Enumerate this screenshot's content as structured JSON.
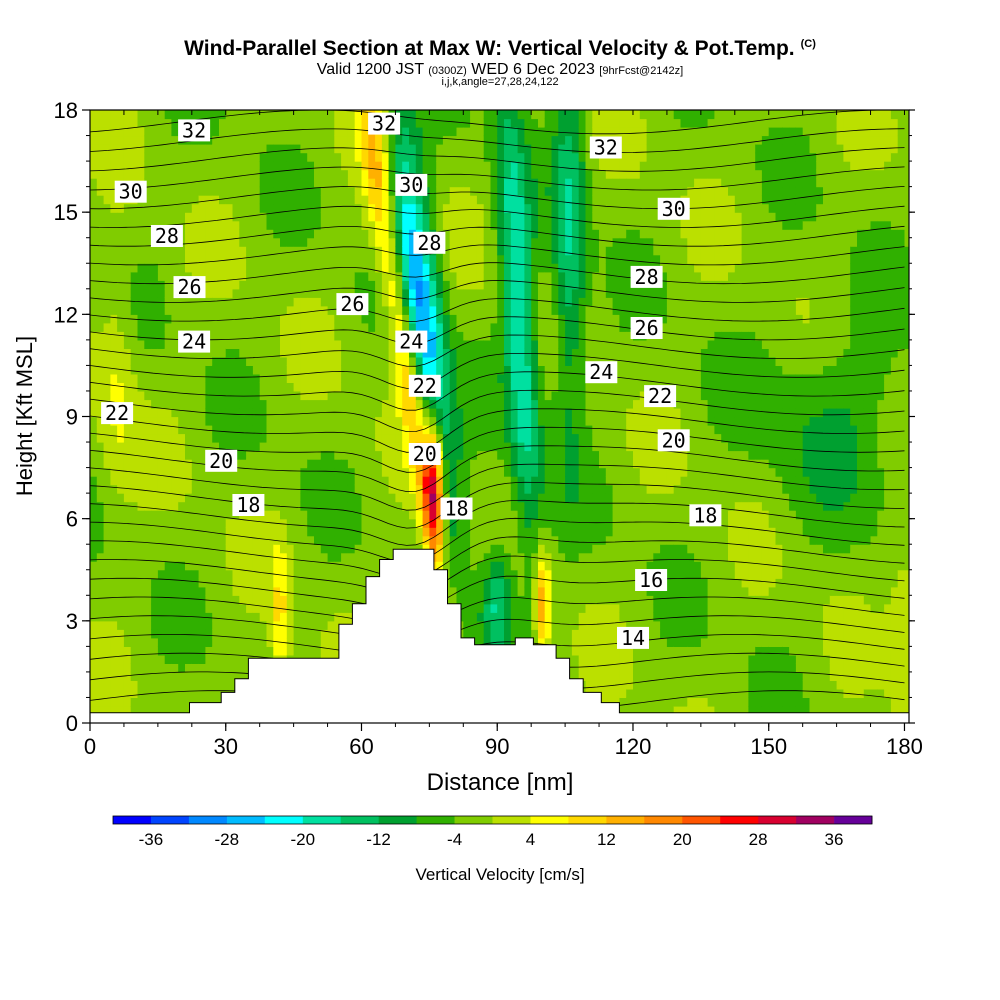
{
  "header": {
    "title": "Wind-Parallel Section at Max W: Vertical Velocity & Pot.Temp.",
    "copyright": "(C)",
    "valid_prefix": "Valid 1200 JST",
    "valid_utc": "(0300Z)",
    "valid_date": "WED 6 Dec 2023",
    "forecast_info": "[9hrFcst@2142z]",
    "indices": "i,j,k,angle=27,28,24,122"
  },
  "chart_data": {
    "type": "heatmap",
    "xlabel": "Distance [nm]",
    "ylabel": "Height [Kft MSL]",
    "xlim": [
      0,
      181
    ],
    "ylim": [
      0,
      18
    ],
    "x_ticks": [
      0,
      30,
      60,
      90,
      120,
      150,
      180
    ],
    "y_ticks": [
      0,
      3,
      6,
      9,
      12,
      15,
      18
    ],
    "grid": false,
    "colorbar": {
      "label": "Vertical Velocity [cm/s]",
      "min": -40,
      "max": 40,
      "step": 4,
      "tick_labels": [
        -36,
        -28,
        -20,
        -12,
        -4,
        4,
        12,
        20,
        28,
        36
      ],
      "colors": [
        "#0000ff",
        "#0044ff",
        "#0088ff",
        "#00bbff",
        "#00ffff",
        "#00e0a0",
        "#00c060",
        "#00a030",
        "#30b000",
        "#80cc00",
        "#bbe000",
        "#ffff00",
        "#ffd800",
        "#ffb000",
        "#ff8800",
        "#ff5500",
        "#ff0000",
        "#d80030",
        "#a00060",
        "#660099"
      ]
    },
    "terrain_kft": [
      [
        0,
        0.3
      ],
      [
        22,
        0.3
      ],
      [
        22,
        0.6
      ],
      [
        29,
        0.6
      ],
      [
        29,
        0.9
      ],
      [
        32,
        0.9
      ],
      [
        32,
        1.3
      ],
      [
        35,
        1.3
      ],
      [
        35,
        1.9
      ],
      [
        55,
        1.9
      ],
      [
        55,
        2.9
      ],
      [
        58,
        2.9
      ],
      [
        58,
        3.5
      ],
      [
        61,
        3.5
      ],
      [
        61,
        4.3
      ],
      [
        64,
        4.3
      ],
      [
        64,
        4.8
      ],
      [
        67,
        4.8
      ],
      [
        67,
        5.1
      ],
      [
        76,
        5.1
      ],
      [
        76,
        4.5
      ],
      [
        79,
        4.5
      ],
      [
        79,
        3.5
      ],
      [
        82,
        3.5
      ],
      [
        82,
        2.5
      ],
      [
        85,
        2.5
      ],
      [
        85,
        2.3
      ],
      [
        94,
        2.3
      ],
      [
        94,
        2.5
      ],
      [
        98,
        2.5
      ],
      [
        98,
        2.3
      ],
      [
        103,
        2.3
      ],
      [
        103,
        1.9
      ],
      [
        106,
        1.9
      ],
      [
        106,
        1.3
      ],
      [
        109,
        1.3
      ],
      [
        109,
        0.9
      ],
      [
        113,
        0.9
      ],
      [
        113,
        0.6
      ],
      [
        117,
        0.6
      ],
      [
        117,
        0.3
      ],
      [
        181,
        0.3
      ]
    ],
    "isotherm_labels": [
      {
        "text": "32",
        "x": 23,
        "y": 17.4
      },
      {
        "text": "30",
        "x": 9,
        "y": 15.6
      },
      {
        "text": "28",
        "x": 17,
        "y": 14.3
      },
      {
        "text": "26",
        "x": 22,
        "y": 12.8
      },
      {
        "text": "24",
        "x": 23,
        "y": 11.2
      },
      {
        "text": "22",
        "x": 6,
        "y": 9.1
      },
      {
        "text": "20",
        "x": 29,
        "y": 7.7
      },
      {
        "text": "18",
        "x": 35,
        "y": 6.4
      },
      {
        "text": "32",
        "x": 65,
        "y": 17.6
      },
      {
        "text": "30",
        "x": 71,
        "y": 15.8
      },
      {
        "text": "28",
        "x": 75,
        "y": 14.1
      },
      {
        "text": "26",
        "x": 58,
        "y": 12.3
      },
      {
        "text": "24",
        "x": 71,
        "y": 11.2
      },
      {
        "text": "22",
        "x": 74,
        "y": 9.9
      },
      {
        "text": "20",
        "x": 74,
        "y": 7.9
      },
      {
        "text": "18",
        "x": 81,
        "y": 6.3
      },
      {
        "text": "32",
        "x": 114,
        "y": 16.9
      },
      {
        "text": "30",
        "x": 129,
        "y": 15.1
      },
      {
        "text": "28",
        "x": 123,
        "y": 13.1
      },
      {
        "text": "26",
        "x": 123,
        "y": 11.6
      },
      {
        "text": "24",
        "x": 113,
        "y": 10.3
      },
      {
        "text": "22",
        "x": 126,
        "y": 9.6
      },
      {
        "text": "20",
        "x": 129,
        "y": 8.3
      },
      {
        "text": "18",
        "x": 136,
        "y": 6.1
      },
      {
        "text": "16",
        "x": 124,
        "y": 4.2
      },
      {
        "text": "14",
        "x": 120,
        "y": 2.5
      }
    ]
  }
}
